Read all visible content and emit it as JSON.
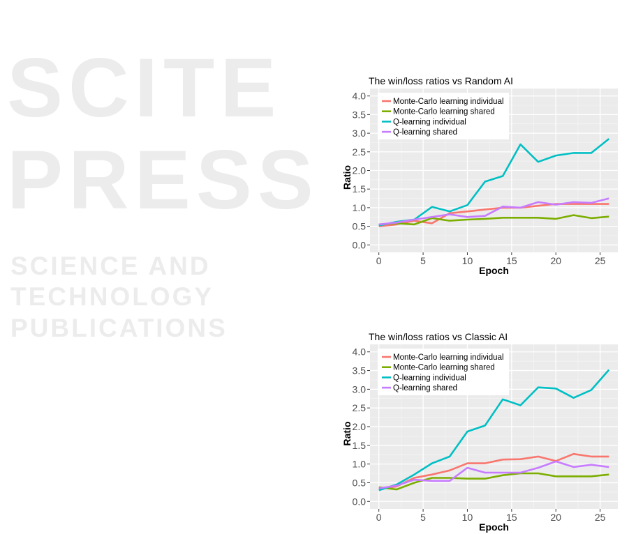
{
  "watermark": {
    "main": "SCITEPRESS",
    "sub": "SCIENCE AND TECHNOLOGY PUBLICATIONS"
  },
  "chart_data": [
    {
      "type": "line",
      "title": "The win/loss ratios vs Random AI",
      "xlabel": "Epoch",
      "ylabel": "Ratio",
      "xlim": [
        -1,
        27
      ],
      "ylim": [
        -0.2,
        4.2
      ],
      "xticks": [
        0,
        5,
        10,
        15,
        20,
        25
      ],
      "yticks": [
        "0.0",
        "0.5",
        "1.0",
        "1.5",
        "2.0",
        "2.5",
        "3.0",
        "3.5",
        "4.0"
      ],
      "grid": true,
      "legend": "top-left",
      "x": [
        0,
        2,
        4,
        6,
        8,
        10,
        12,
        14,
        16,
        18,
        20,
        22,
        24,
        26
      ],
      "series": [
        {
          "name": "Monte-Carlo learning individual",
          "color": "#f8766d",
          "values": [
            0.5,
            0.55,
            0.65,
            0.58,
            0.85,
            0.9,
            0.95,
            1.0,
            1.0,
            1.05,
            1.1,
            1.1,
            1.1,
            1.1
          ]
        },
        {
          "name": "Monte-Carlo learning shared",
          "color": "#7cae00",
          "values": [
            0.55,
            0.58,
            0.55,
            0.72,
            0.65,
            0.68,
            0.7,
            0.73,
            0.73,
            0.73,
            0.7,
            0.8,
            0.72,
            0.76
          ]
        },
        {
          "name": "Q-learning individual",
          "color": "#00bfc4",
          "values": [
            0.52,
            0.62,
            0.68,
            1.02,
            0.9,
            1.07,
            1.7,
            1.85,
            2.7,
            2.23,
            2.4,
            2.47,
            2.47,
            2.85
          ]
        },
        {
          "name": "Q-learning shared",
          "color": "#c77cff",
          "values": [
            0.55,
            0.6,
            0.68,
            0.75,
            0.82,
            0.75,
            0.78,
            1.03,
            1.0,
            1.15,
            1.08,
            1.15,
            1.13,
            1.25
          ]
        }
      ]
    },
    {
      "type": "line",
      "title": "The win/loss ratios vs Classic AI",
      "xlabel": "Epoch",
      "ylabel": "Ratio",
      "xlim": [
        -1,
        27
      ],
      "ylim": [
        -0.2,
        4.2
      ],
      "xticks": [
        0,
        5,
        10,
        15,
        20,
        25
      ],
      "yticks": [
        "0.0",
        "0.5",
        "1.0",
        "1.5",
        "2.0",
        "2.5",
        "3.0",
        "3.5",
        "4.0"
      ],
      "grid": true,
      "legend": "top-left",
      "x": [
        0,
        2,
        4,
        6,
        8,
        10,
        12,
        14,
        16,
        18,
        20,
        22,
        24,
        26
      ],
      "series": [
        {
          "name": "Monte-Carlo learning individual",
          "color": "#f8766d",
          "values": [
            0.33,
            0.4,
            0.63,
            0.72,
            0.83,
            1.02,
            1.02,
            1.12,
            1.13,
            1.2,
            1.08,
            1.27,
            1.2,
            1.2
          ]
        },
        {
          "name": "Monte-Carlo learning shared",
          "color": "#7cae00",
          "values": [
            0.38,
            0.32,
            0.5,
            0.63,
            0.63,
            0.61,
            0.61,
            0.7,
            0.75,
            0.75,
            0.67,
            0.67,
            0.67,
            0.72
          ]
        },
        {
          "name": "Q-learning individual",
          "color": "#00bfc4",
          "values": [
            0.3,
            0.45,
            0.72,
            1.02,
            1.2,
            1.87,
            2.03,
            2.73,
            2.57,
            3.05,
            3.02,
            2.77,
            2.98,
            3.52
          ]
        },
        {
          "name": "Q-learning shared",
          "color": "#c77cff",
          "values": [
            0.35,
            0.42,
            0.58,
            0.55,
            0.55,
            0.9,
            0.77,
            0.77,
            0.77,
            0.9,
            1.07,
            0.92,
            0.98,
            0.92
          ]
        }
      ]
    }
  ]
}
